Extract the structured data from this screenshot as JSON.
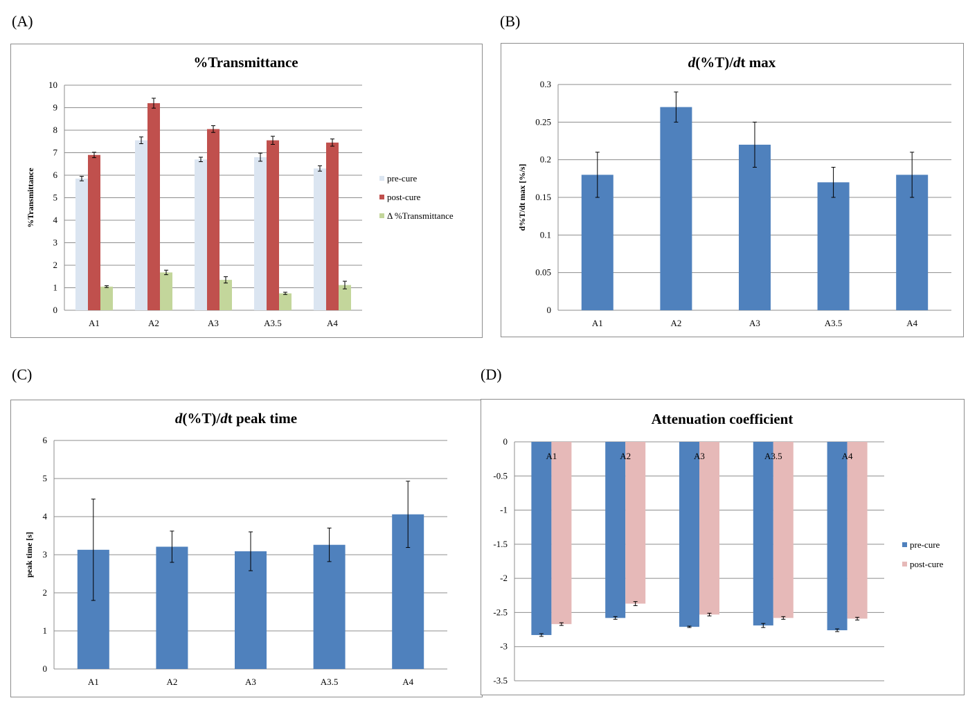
{
  "panel_labels": [
    "(A)",
    "(B)",
    "(C)",
    "(D)"
  ],
  "chart_data": [
    {
      "type": "bar",
      "title": "%Transmittance",
      "xlabel": "",
      "ylabel": "%Transmittance",
      "ylim": [
        0,
        10
      ],
      "yticks": [
        "0",
        "1",
        "2",
        "3",
        "4",
        "5",
        "6",
        "7",
        "8",
        "9",
        "10"
      ],
      "categories": [
        "A1",
        "A2",
        "A3",
        "A3.5",
        "A4"
      ],
      "series": [
        {
          "name": "pre-cure",
          "color": "#dbe5f1",
          "values": [
            5.85,
            7.55,
            6.7,
            6.8,
            6.3
          ],
          "errors": [
            0.1,
            0.15,
            0.1,
            0.18,
            0.12
          ]
        },
        {
          "name": "post-cure",
          "color": "#c0504d",
          "values": [
            6.9,
            9.2,
            8.05,
            7.55,
            7.45
          ],
          "errors": [
            0.12,
            0.22,
            0.15,
            0.18,
            0.16
          ]
        },
        {
          "name": "Δ %Transmittance",
          "color": "#c3d69b",
          "values": [
            1.05,
            1.68,
            1.35,
            0.75,
            1.12
          ],
          "errors": [
            0.04,
            0.1,
            0.14,
            0.05,
            0.17
          ]
        }
      ],
      "legend": "right",
      "grid": true
    },
    {
      "type": "bar",
      "title_parts": [
        {
          "text": "d",
          "italic": true
        },
        {
          "text": "(%T)/",
          "italic": false
        },
        {
          "text": "d",
          "italic": true
        },
        {
          "text": "t max",
          "italic": false
        }
      ],
      "ylabel": "d%T/dt max [%/s]",
      "ylim": [
        0,
        0.3
      ],
      "yticks": [
        "0",
        "0.05",
        "0.1",
        "0.15",
        "0.2",
        "0.25",
        "0.3"
      ],
      "categories": [
        "A1",
        "A2",
        "A3",
        "A3.5",
        "A4"
      ],
      "series": [
        {
          "name": "d(%T)/dt max",
          "color": "#4f81bd",
          "values": [
            0.18,
            0.27,
            0.22,
            0.17,
            0.18
          ],
          "errors": [
            0.03,
            0.02,
            0.03,
            0.02,
            0.03
          ]
        }
      ],
      "grid": true
    },
    {
      "type": "bar",
      "title_parts": [
        {
          "text": "d",
          "italic": true
        },
        {
          "text": "(%T)/",
          "italic": false
        },
        {
          "text": "d",
          "italic": true
        },
        {
          "text": "t peak time",
          "italic": false
        }
      ],
      "ylabel": "peak time [s]",
      "ylim": [
        0,
        6
      ],
      "yticks": [
        "0",
        "1",
        "2",
        "3",
        "4",
        "5",
        "6"
      ],
      "categories": [
        "A1",
        "A2",
        "A3",
        "A3.5",
        "A4"
      ],
      "series": [
        {
          "name": "peak time",
          "color": "#4f81bd",
          "values": [
            3.13,
            3.21,
            3.09,
            3.26,
            4.06
          ],
          "errors": [
            1.33,
            0.41,
            0.51,
            0.44,
            0.87
          ]
        }
      ],
      "grid": true
    },
    {
      "type": "bar",
      "title": "Attenuation coefficient",
      "ylabel": "",
      "ylim": [
        -3.5,
        0
      ],
      "yticks": [
        "0",
        "-0.5",
        "-1",
        "-1.5",
        "-2",
        "-2.5",
        "-3",
        "-3.5"
      ],
      "categories": [
        "A1",
        "A2",
        "A3",
        "A3.5",
        "A4"
      ],
      "series": [
        {
          "name": "pre-cure",
          "color": "#4f81bd",
          "values": [
            -2.83,
            -2.58,
            -2.71,
            -2.69,
            -2.76
          ],
          "errors": [
            0.02,
            0.02,
            0.01,
            0.03,
            0.02
          ]
        },
        {
          "name": "post-cure",
          "color": "#e6b9b8",
          "values": [
            -2.67,
            -2.37,
            -2.53,
            -2.58,
            -2.59
          ],
          "errors": [
            0.02,
            0.03,
            0.02,
            0.02,
            0.02
          ]
        }
      ],
      "legend": "right",
      "grid": true
    }
  ]
}
